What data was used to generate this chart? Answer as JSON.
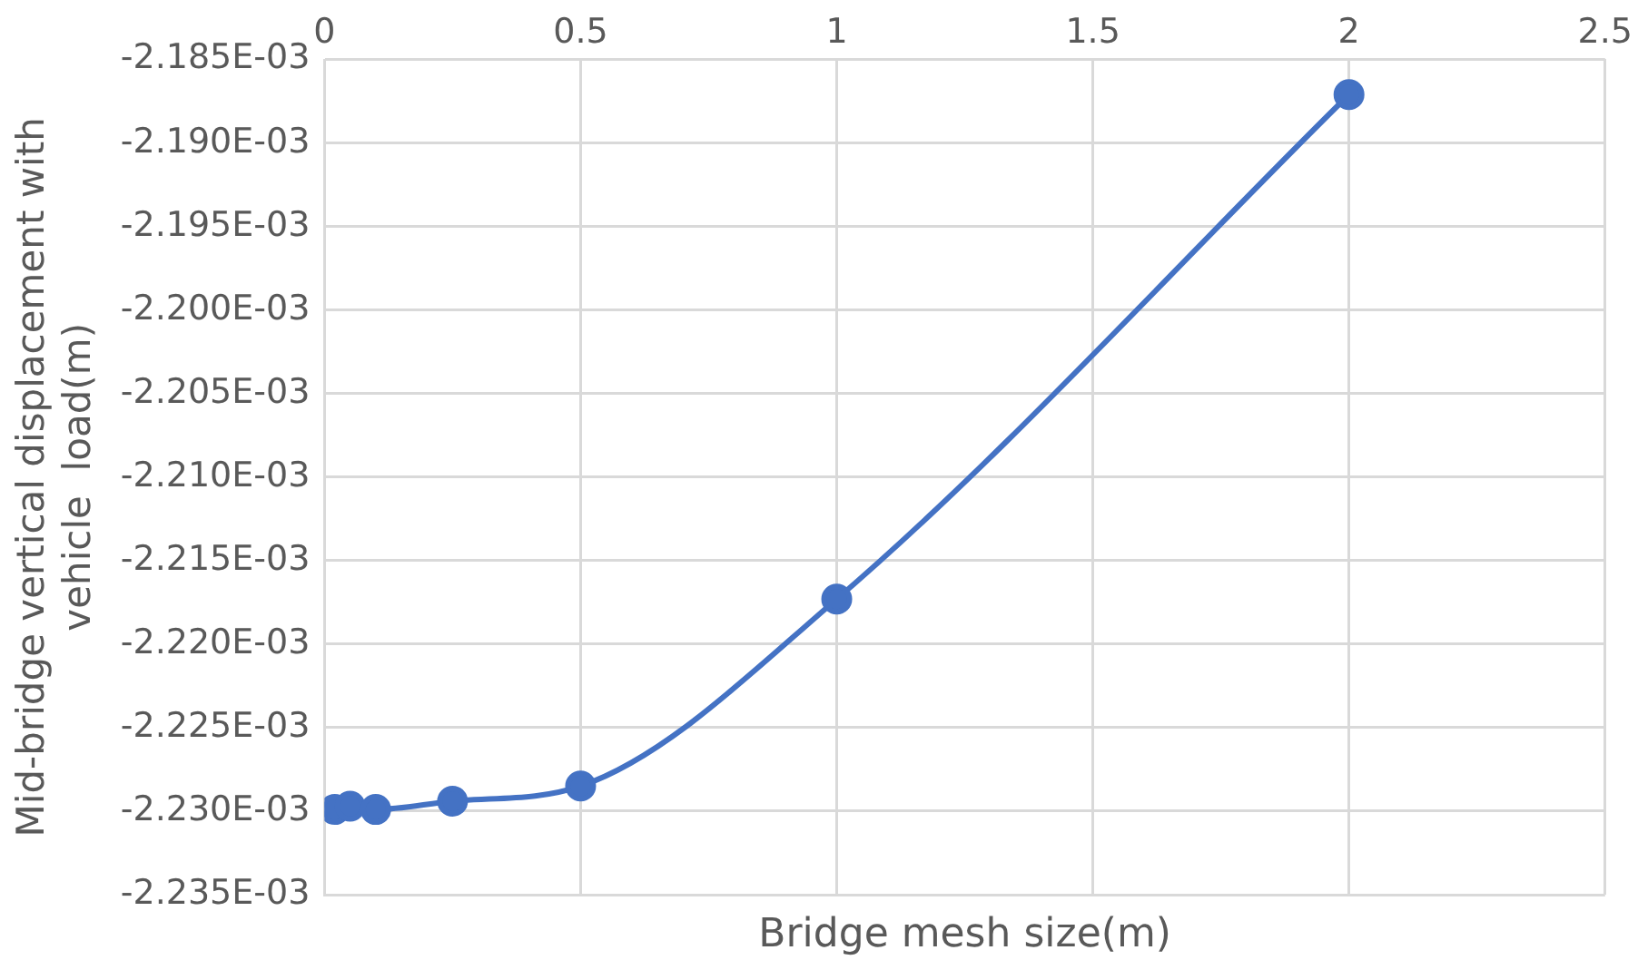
{
  "chart_data": {
    "type": "line",
    "xlabel": "Bridge mesh size(m)",
    "ylabel": "Mid-bridge vertical displacement with\nvehicle  load(m)",
    "x": [
      0.02,
      0.05,
      0.1,
      0.25,
      0.5,
      1,
      2
    ],
    "series": [
      {
        "color": "#4472c4",
        "values": [
          -0.0022299,
          -0.0022297,
          -0.0022299,
          -0.0022294,
          -0.0022285,
          -0.0022173,
          -0.0021871
        ]
      }
    ],
    "xlim": [
      0,
      2.5
    ],
    "xticks": [
      0,
      0.5,
      1,
      1.5,
      2,
      2.5
    ],
    "ylim": [
      -0.002235,
      -0.002185
    ],
    "yticks": [
      {
        "value": -0.002235,
        "label": "-2.235E-03"
      },
      {
        "value": -0.00223,
        "label": "-2.230E-03"
      },
      {
        "value": -0.002225,
        "label": "-2.225E-03"
      },
      {
        "value": -0.00222,
        "label": "-2.220E-03"
      },
      {
        "value": -0.002215,
        "label": "-2.215E-03"
      },
      {
        "value": -0.00221,
        "label": "-2.210E-03"
      },
      {
        "value": -0.002205,
        "label": "-2.205E-03"
      },
      {
        "value": -0.0022,
        "label": "-2.200E-03"
      },
      {
        "value": -0.002195,
        "label": "-2.195E-03"
      },
      {
        "value": -0.00219,
        "label": "-2.190E-03"
      },
      {
        "value": -0.002185,
        "label": "-2.185E-03"
      }
    ],
    "grid": true,
    "legend": false,
    "marker": "circle",
    "line_style": "solid"
  }
}
